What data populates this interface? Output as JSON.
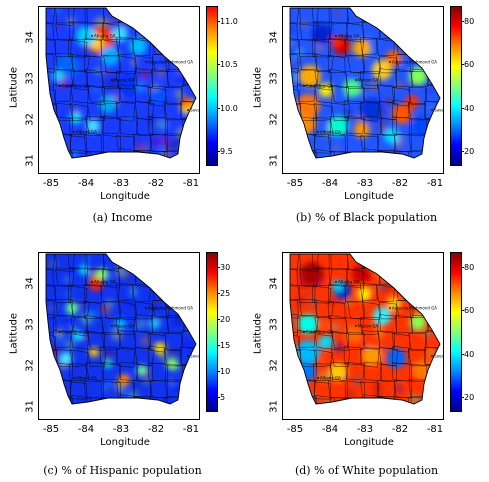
{
  "panels": [
    {
      "id": "a",
      "caption": "(a) Income",
      "colorbar": {
        "ticks": [
          "11.0",
          "10.5",
          "10.0",
          "9.5"
        ],
        "colors": [
          "#ff0000",
          "#ff8800",
          "#ffff00",
          "#88ff77",
          "#00ffff",
          "#0088ff",
          "#0000ff",
          "#000088"
        ]
      },
      "xlabel": "Longitude",
      "ylabel": "Latitude",
      "xticks": [
        "-85",
        "-84",
        "-83",
        "-82",
        "-81"
      ],
      "yticks": [
        "34",
        "33",
        "32",
        "31"
      ],
      "pattern": "income"
    },
    {
      "id": "b",
      "caption": "(b) % of Black population",
      "colorbar": {
        "ticks": [
          "80",
          "60",
          "40",
          "20"
        ],
        "colors": [
          "#880000",
          "#ff0000",
          "#ff8800",
          "#ffff00",
          "#88ff77",
          "#00ffff",
          "#0088ff",
          "#0000ff",
          "#000088"
        ]
      },
      "xlabel": "Longitude",
      "ylabel": "Latitude",
      "xticks": [
        "-85",
        "-84",
        "-83",
        "-82",
        "-81"
      ],
      "yticks": [
        "34",
        "33",
        "32",
        "31"
      ],
      "pattern": "black"
    },
    {
      "id": "c",
      "caption": "(c) % of Hispanic population",
      "colorbar": {
        "ticks": [
          "30",
          "25",
          "20",
          "15",
          "10",
          "5"
        ],
        "colors": [
          "#880000",
          "#ff0000",
          "#ff8800",
          "#ffff00",
          "#88ff77",
          "#00ffff",
          "#0088ff",
          "#0000ff",
          "#000088"
        ]
      },
      "xlabel": "Longitude",
      "ylabel": "Latitude",
      "xticks": [
        "-85",
        "-84",
        "-83",
        "-82",
        "-81"
      ],
      "yticks": [
        "34",
        "33",
        "32",
        "31"
      ],
      "pattern": "hispanic"
    },
    {
      "id": "d",
      "caption": "(d) % of White population",
      "colorbar": {
        "ticks": [
          "80",
          "60",
          "40",
          "20"
        ],
        "colors": [
          "#880000",
          "#ff0000",
          "#ff8800",
          "#ffff00",
          "#88ff77",
          "#00ffff",
          "#0088ff",
          "#0000ff",
          "#000088"
        ]
      },
      "xlabel": "Longitude",
      "ylabel": "Latitude",
      "xticks": [
        "-85",
        "-84",
        "-83",
        "-82",
        "-81"
      ],
      "yticks": [
        "34",
        "33",
        "32",
        "31"
      ],
      "pattern": "white"
    }
  ],
  "towns": [
    "Atlanta GA",
    "Augusta-Richmond GA",
    "Macon GA",
    "Columbus GA",
    "Savannah GA",
    "Albany GA"
  ]
}
